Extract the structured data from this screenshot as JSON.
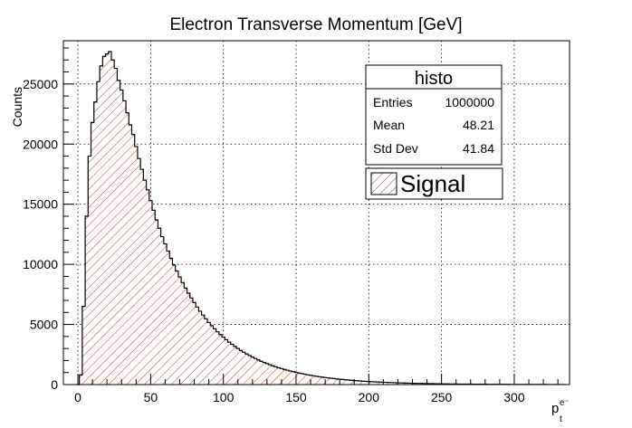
{
  "chart_data": {
    "type": "bar",
    "title": "Electron Transverse Momentum [GeV]",
    "xlabel": "p",
    "xlabel_super": "e⁻",
    "xlabel_sub": "t",
    "ylabel": "Counts",
    "xlim": [
      -10,
      338
    ],
    "ylim": [
      0,
      28600
    ],
    "x_ticks": [
      0,
      50,
      100,
      150,
      200,
      250,
      300
    ],
    "y_ticks": [
      0,
      5000,
      10000,
      15000,
      20000,
      25000
    ],
    "grid": true,
    "bin_width": 2,
    "bin_start": -1,
    "series": [
      {
        "fill_pattern": "hatched",
        "fill_color": "#c0392b",
        "line_color": "#000000",
        "values": [
          0,
          800,
          6500,
          14000,
          19000,
          21800,
          23500,
          25200,
          26500,
          27300,
          27500,
          27700,
          27000,
          26300,
          25300,
          24500,
          23600,
          22600,
          21600,
          20800,
          19800,
          18800,
          17900,
          17000,
          16200,
          15300,
          14500,
          13700,
          13000,
          12300,
          11700,
          11100,
          10500,
          9950,
          9450,
          8950,
          8480,
          8030,
          7600,
          7200,
          6820,
          6450,
          6100,
          5780,
          5470,
          5170,
          4900,
          4640,
          4390,
          4160,
          3940,
          3730,
          3530,
          3350,
          3170,
          3000,
          2840,
          2690,
          2550,
          2420,
          2290,
          2170,
          2050,
          1940,
          1840,
          1740,
          1650,
          1560,
          1480,
          1400,
          1330,
          1260,
          1190,
          1130,
          1070,
          1010,
          960,
          910,
          860,
          815,
          770,
          730,
          690,
          655,
          620,
          587,
          555,
          525,
          497,
          470,
          445,
          421,
          398,
          376,
          356,
          337,
          319,
          302,
          285,
          270,
          255,
          241,
          228,
          216,
          204,
          193,
          183,
          173,
          163,
          154,
          146,
          138,
          130,
          123,
          116,
          110,
          104,
          98,
          93,
          88,
          83,
          78,
          74,
          70,
          66,
          62,
          59,
          56,
          53,
          50,
          47,
          44,
          42,
          39,
          37,
          35,
          33,
          31,
          29,
          28,
          26,
          25,
          23,
          22,
          21,
          20,
          18,
          17,
          16,
          15,
          14,
          13,
          12,
          12,
          11,
          10,
          9,
          9,
          8,
          8,
          7,
          7,
          6,
          6,
          5,
          5,
          5,
          4
        ]
      }
    ],
    "stats_box": {
      "title": "histo",
      "rows": [
        {
          "label": "Entries",
          "value": "1000000"
        },
        {
          "label": "Mean",
          "value": "48.21"
        },
        {
          "label": "Std Dev",
          "value": "41.84"
        }
      ]
    },
    "legend": {
      "placement": "top-right",
      "entries": [
        {
          "label": "Signal"
        }
      ]
    }
  }
}
